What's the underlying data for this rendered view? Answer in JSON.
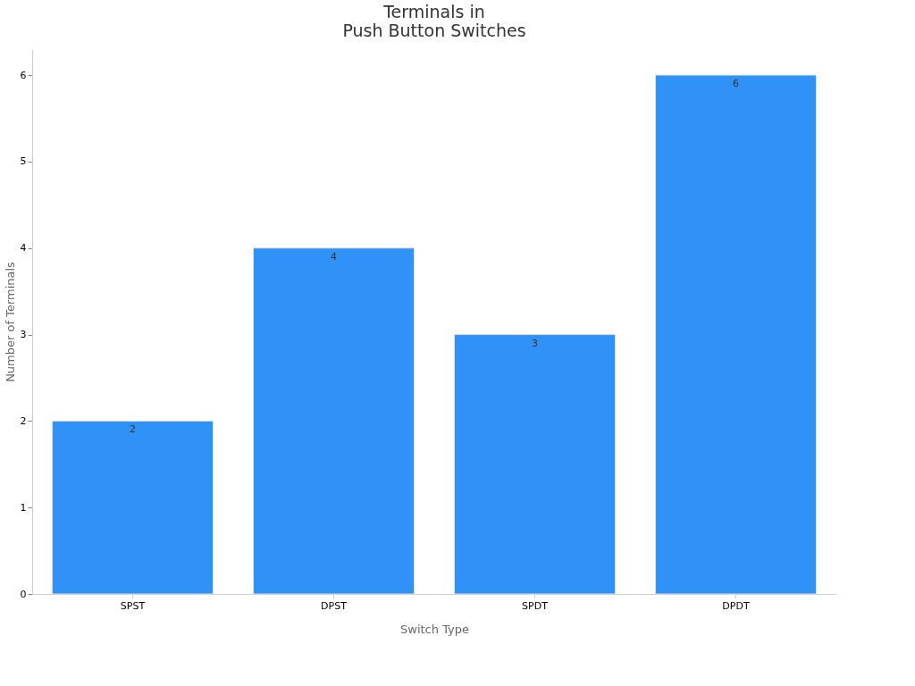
{
  "chart_data": {
    "type": "bar",
    "title": "Terminals in\nPush Button Switches",
    "xlabel": "Switch Type",
    "ylabel": "Number of Terminals",
    "categories": [
      "SPST",
      "DPST",
      "SPDT",
      "DPDT"
    ],
    "series": [
      {
        "color": "#3092f6",
        "values": [
          2,
          4,
          3,
          6
        ]
      }
    ],
    "ylim": [
      0,
      6.3
    ],
    "yticks": [
      0,
      1,
      2,
      3,
      4,
      5,
      6
    ],
    "grid": false,
    "data_labels": true
  }
}
